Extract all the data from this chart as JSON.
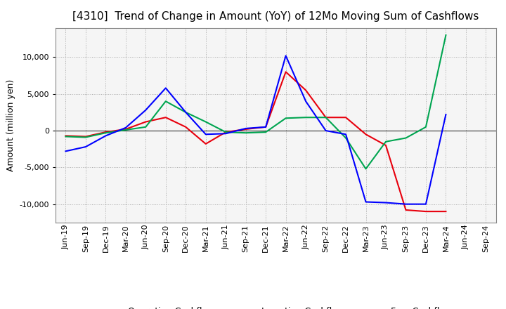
{
  "title": "[4310]  Trend of Change in Amount (YoY) of 12Mo Moving Sum of Cashflows",
  "ylabel": "Amount (million yen)",
  "x_labels": [
    "Jun-19",
    "Sep-19",
    "Dec-19",
    "Mar-20",
    "Jun-20",
    "Sep-20",
    "Dec-20",
    "Mar-21",
    "Jun-21",
    "Sep-21",
    "Dec-21",
    "Mar-22",
    "Jun-22",
    "Sep-22",
    "Dec-22",
    "Mar-23",
    "Jun-23",
    "Sep-23",
    "Dec-23",
    "Mar-24",
    "Jun-24",
    "Sep-24"
  ],
  "operating": [
    -700,
    -800,
    -200,
    200,
    1200,
    1800,
    500,
    -1800,
    -200,
    200,
    500,
    8000,
    5500,
    1800,
    1800,
    -500,
    -2000,
    -10800,
    -11000,
    -11000,
    null,
    null
  ],
  "investing": [
    -800,
    -900,
    -300,
    100,
    500,
    4000,
    2500,
    1200,
    -200,
    -300,
    -200,
    1700,
    1800,
    1800,
    -1000,
    -5200,
    -1500,
    -1000,
    500,
    13000,
    null,
    null
  ],
  "free": [
    -2800,
    -2200,
    -700,
    400,
    2800,
    5800,
    2500,
    -500,
    -400,
    300,
    500,
    10200,
    4000,
    0,
    -500,
    -9700,
    -9800,
    -10000,
    -10000,
    2200,
    null,
    null
  ],
  "operating_color": "#e8000d",
  "investing_color": "#00a550",
  "free_color": "#0000ff",
  "ylim": [
    -12500,
    14000
  ],
  "yticks": [
    -10000,
    -5000,
    0,
    5000,
    10000
  ],
  "background_color": "#ffffff",
  "plot_bg_color": "#f5f5f5",
  "grid_color": "#aaaaaa",
  "title_fontsize": 11,
  "axis_fontsize": 8,
  "legend_fontsize": 9
}
